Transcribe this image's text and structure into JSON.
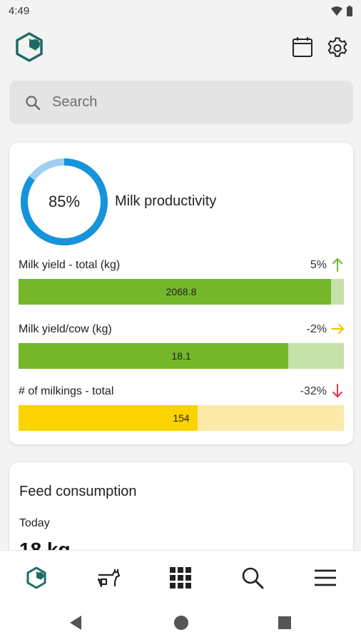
{
  "status_bar": {
    "time": "4:49"
  },
  "search": {
    "placeholder": "Search"
  },
  "milk_card": {
    "productivity_percent": 85,
    "productivity_label": "85%",
    "title": "Milk productivity",
    "metrics": [
      {
        "label": "Milk yield - total (kg)",
        "change": "5%",
        "trend": "up",
        "value": "2068.8",
        "fill_fraction": 0.96,
        "fill_color": "#74b72a",
        "track_color": "#c5e0a8",
        "arrow_color": "#74b72a"
      },
      {
        "label": "Milk yield/cow (kg)",
        "change": "-2%",
        "trend": "flat",
        "value": "18.1",
        "fill_fraction": 0.83,
        "fill_color": "#74b72a",
        "track_color": "#c5e0a8",
        "arrow_color": "#f0c400"
      },
      {
        "label": "# of milkings - total",
        "change": "-32%",
        "trend": "down",
        "value": "154",
        "fill_fraction": 0.55,
        "fill_color": "#fbd300",
        "track_color": "#fde9a9",
        "arrow_color": "#e0354b"
      }
    ]
  },
  "feed_card": {
    "title": "Feed consumption",
    "period": "Today",
    "value": "18 kg"
  },
  "bottom_nav": {
    "items": [
      "home-logo-icon",
      "cow-icon",
      "apps-grid-icon",
      "search-icon",
      "menu-icon"
    ],
    "accent": "#1f6b63"
  },
  "colors": {
    "brand": "#1f6b63",
    "ring": "#1593db",
    "ring_light": "#9fd0ef"
  }
}
